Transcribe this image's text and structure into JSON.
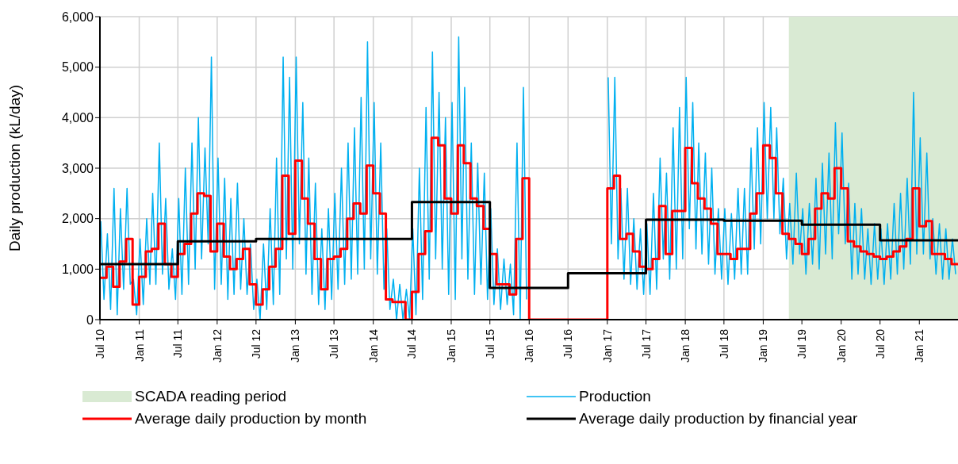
{
  "chart_data": {
    "type": "line",
    "ylabel": "Daily production (kL/day)",
    "ylim": [
      0,
      6000
    ],
    "yticks": [
      0,
      {
        "value": 1000,
        "label": "1,000"
      },
      {
        "value": 2000,
        "label": "2,000"
      },
      {
        "value": 3000,
        "label": "3,000"
      },
      {
        "value": 4000,
        "label": "4,000"
      },
      {
        "value": 5000,
        "label": "5,000"
      },
      {
        "value": 6000,
        "label": "6,000"
      }
    ],
    "xlim": [
      "2010-07-01",
      "2021-07-01"
    ],
    "xticks": [
      {
        "value": "2010-07-01",
        "label": "Jul 10"
      },
      {
        "value": "2011-01-01",
        "label": "Jan 11"
      },
      {
        "value": "2011-07-01",
        "label": "Jul 11"
      },
      {
        "value": "2012-01-01",
        "label": "Jan 12"
      },
      {
        "value": "2012-07-01",
        "label": "Jul 12"
      },
      {
        "value": "2013-01-01",
        "label": "Jan 13"
      },
      {
        "value": "2013-07-01",
        "label": "Jul 13"
      },
      {
        "value": "2014-01-01",
        "label": "Jan 14"
      },
      {
        "value": "2014-07-01",
        "label": "Jul 14"
      },
      {
        "value": "2015-01-01",
        "label": "Jan 15"
      },
      {
        "value": "2015-07-01",
        "label": "Jul 15"
      },
      {
        "value": "2016-01-01",
        "label": "Jan 16"
      },
      {
        "value": "2016-07-01",
        "label": "Jul 16"
      },
      {
        "value": "2017-01-01",
        "label": "Jan 17"
      },
      {
        "value": "2017-07-01",
        "label": "Jul 17"
      },
      {
        "value": "2018-01-01",
        "label": "Jan 18"
      },
      {
        "value": "2018-07-01",
        "label": "Jul 18"
      },
      {
        "value": "2019-01-01",
        "label": "Jan 19"
      },
      {
        "value": "2019-07-01",
        "label": "Jul 19"
      },
      {
        "value": "2020-01-01",
        "label": "Jan 20"
      },
      {
        "value": "2020-07-01",
        "label": "Jul 20"
      },
      {
        "value": "2021-01-01",
        "label": "Jan 21"
      }
    ],
    "grid": true,
    "legend": "bottom",
    "bands": [
      {
        "axis": "x",
        "from": "2019-05-01",
        "to": "2021-07-01",
        "label": "SCADA reading period",
        "color": "#d9ead3"
      }
    ],
    "x": [
      "2010-07",
      "2010-08",
      "2010-09",
      "2010-10",
      "2010-11",
      "2010-12",
      "2011-01",
      "2011-02",
      "2011-03",
      "2011-04",
      "2011-05",
      "2011-06",
      "2011-07",
      "2011-08",
      "2011-09",
      "2011-10",
      "2011-11",
      "2011-12",
      "2012-01",
      "2012-02",
      "2012-03",
      "2012-04",
      "2012-05",
      "2012-06",
      "2012-07",
      "2012-08",
      "2012-09",
      "2012-10",
      "2012-11",
      "2012-12",
      "2013-01",
      "2013-02",
      "2013-03",
      "2013-04",
      "2013-05",
      "2013-06",
      "2013-07",
      "2013-08",
      "2013-09",
      "2013-10",
      "2013-11",
      "2013-12",
      "2014-01",
      "2014-02",
      "2014-03",
      "2014-04",
      "2014-05",
      "2014-06",
      "2014-07",
      "2014-08",
      "2014-09",
      "2014-10",
      "2014-11",
      "2014-12",
      "2015-01",
      "2015-02",
      "2015-03",
      "2015-04",
      "2015-05",
      "2015-06",
      "2015-07",
      "2015-08",
      "2015-09",
      "2015-10",
      "2015-11",
      "2015-12",
      "2016-01",
      "2016-02",
      "2016-03",
      "2016-04",
      "2016-05",
      "2016-06",
      "2016-07",
      "2016-08",
      "2016-09",
      "2016-10",
      "2016-11",
      "2016-12",
      "2017-01",
      "2017-02",
      "2017-03",
      "2017-04",
      "2017-05",
      "2017-06",
      "2017-07",
      "2017-08",
      "2017-09",
      "2017-10",
      "2017-11",
      "2017-12",
      "2018-01",
      "2018-02",
      "2018-03",
      "2018-04",
      "2018-05",
      "2018-06",
      "2018-07",
      "2018-08",
      "2018-09",
      "2018-10",
      "2018-11",
      "2018-12",
      "2019-01",
      "2019-02",
      "2019-03",
      "2019-04",
      "2019-05",
      "2019-06",
      "2019-07",
      "2019-08",
      "2019-09",
      "2019-10",
      "2019-11",
      "2019-12",
      "2020-01",
      "2020-02",
      "2020-03",
      "2020-04",
      "2020-05",
      "2020-06",
      "2020-07",
      "2020-08",
      "2020-09",
      "2020-10",
      "2020-11",
      "2020-12",
      "2021-01",
      "2021-02",
      "2021-03",
      "2021-04",
      "2021-05",
      "2021-06",
      "2021-07"
    ],
    "series": [
      {
        "name": "Production",
        "type": "line",
        "color": "#00b0f0",
        "x": [
          "2010-07-05",
          "2010-07-20",
          "2010-08-05",
          "2010-08-20",
          "2010-09-05",
          "2010-09-20",
          "2010-10-05",
          "2010-10-20",
          "2010-11-05",
          "2010-11-20",
          "2010-12-05",
          "2010-12-20",
          "2011-01-05",
          "2011-01-20",
          "2011-02-05",
          "2011-02-20",
          "2011-03-05",
          "2011-03-20",
          "2011-04-05",
          "2011-04-20",
          "2011-05-05",
          "2011-05-20",
          "2011-06-05",
          "2011-06-20",
          "2011-07-05",
          "2011-07-20",
          "2011-08-05",
          "2011-08-20",
          "2011-09-05",
          "2011-09-20",
          "2011-10-05",
          "2011-10-20",
          "2011-11-05",
          "2011-11-20",
          "2011-12-05",
          "2011-12-20",
          "2012-01-05",
          "2012-01-20",
          "2012-02-05",
          "2012-02-20",
          "2012-03-05",
          "2012-03-20",
          "2012-04-05",
          "2012-04-20",
          "2012-05-05",
          "2012-05-20",
          "2012-06-05",
          "2012-06-20",
          "2012-07-05",
          "2012-07-20",
          "2012-08-05",
          "2012-08-20",
          "2012-09-05",
          "2012-09-20",
          "2012-10-05",
          "2012-10-20",
          "2012-11-05",
          "2012-11-20",
          "2012-12-05",
          "2012-12-20",
          "2013-01-05",
          "2013-01-20",
          "2013-02-05",
          "2013-02-20",
          "2013-03-05",
          "2013-03-20",
          "2013-04-05",
          "2013-04-20",
          "2013-05-05",
          "2013-05-20",
          "2013-06-05",
          "2013-06-20",
          "2013-07-05",
          "2013-07-20",
          "2013-08-05",
          "2013-08-20",
          "2013-09-05",
          "2013-09-20",
          "2013-10-05",
          "2013-10-20",
          "2013-11-05",
          "2013-11-20",
          "2013-12-05",
          "2013-12-20",
          "2014-01-05",
          "2014-01-20",
          "2014-02-05",
          "2014-02-20",
          "2014-03-05",
          "2014-03-20",
          "2014-04-05",
          "2014-04-20",
          "2014-05-05",
          "2014-05-20",
          "2014-06-05",
          "2014-06-20",
          "2014-07-05",
          "2014-07-20",
          "2014-08-05",
          "2014-08-20",
          "2014-09-05",
          "2014-09-20",
          "2014-10-05",
          "2014-10-20",
          "2014-11-05",
          "2014-11-20",
          "2014-12-05",
          "2014-12-20",
          "2015-01-05",
          "2015-01-20",
          "2015-02-05",
          "2015-02-20",
          "2015-03-05",
          "2015-03-20",
          "2015-04-05",
          "2015-04-20",
          "2015-05-05",
          "2015-05-20",
          "2015-06-05",
          "2015-06-20",
          "2015-07-05",
          "2015-07-20",
          "2015-08-05",
          "2015-08-20",
          "2015-09-05",
          "2015-09-20",
          "2015-10-05",
          "2015-10-20",
          "2015-11-05",
          "2015-11-20",
          "2015-12-05",
          "2015-12-20",
          "2016-07-01",
          "2017-01-05",
          "2017-01-20",
          "2017-02-05",
          "2017-02-20",
          "2017-03-05",
          "2017-03-20",
          "2017-04-05",
          "2017-04-20",
          "2017-05-05",
          "2017-05-20",
          "2017-06-05",
          "2017-06-20",
          "2017-07-05",
          "2017-07-20",
          "2017-08-05",
          "2017-08-20",
          "2017-09-05",
          "2017-09-20",
          "2017-10-05",
          "2017-10-20",
          "2017-11-05",
          "2017-11-20",
          "2017-12-05",
          "2017-12-20",
          "2018-01-05",
          "2018-01-20",
          "2018-02-05",
          "2018-02-20",
          "2018-03-05",
          "2018-03-20",
          "2018-04-05",
          "2018-04-20",
          "2018-05-05",
          "2018-05-20",
          "2018-06-05",
          "2018-06-20",
          "2018-07-05",
          "2018-07-20",
          "2018-08-05",
          "2018-08-20",
          "2018-09-05",
          "2018-09-20",
          "2018-10-05",
          "2018-10-20",
          "2018-11-05",
          "2018-11-20",
          "2018-12-05",
          "2018-12-20",
          "2019-01-05",
          "2019-01-20",
          "2019-02-05",
          "2019-02-20",
          "2019-03-05",
          "2019-03-20",
          "2019-04-05",
          "2019-04-20",
          "2019-05-05",
          "2019-05-20",
          "2019-06-05",
          "2019-06-20",
          "2019-07-05",
          "2019-07-20",
          "2019-08-05",
          "2019-08-20",
          "2019-09-05",
          "2019-09-20",
          "2019-10-05",
          "2019-10-20",
          "2019-11-05",
          "2019-11-20",
          "2019-12-05",
          "2019-12-20",
          "2020-01-05",
          "2020-01-20",
          "2020-02-05",
          "2020-02-20",
          "2020-03-05",
          "2020-03-20",
          "2020-04-05",
          "2020-04-20",
          "2020-05-05",
          "2020-05-20",
          "2020-06-05",
          "2020-06-20",
          "2020-07-05",
          "2020-07-20",
          "2020-08-05",
          "2020-08-20",
          "2020-09-05",
          "2020-09-20",
          "2020-10-05",
          "2020-10-20",
          "2020-11-05",
          "2020-11-20",
          "2020-12-05",
          "2020-12-20",
          "2021-01-05",
          "2021-01-20",
          "2021-02-05",
          "2021-02-20",
          "2021-03-05",
          "2021-03-20",
          "2021-04-05",
          "2021-04-20",
          "2021-05-05",
          "2021-05-20",
          "2021-06-05",
          "2021-06-20"
        ],
        "values": [
          1950,
          400,
          1700,
          200,
          2600,
          100,
          2200,
          600,
          2600,
          700,
          800,
          100,
          1600,
          300,
          2000,
          700,
          2500,
          700,
          3500,
          900,
          2400,
          600,
          1400,
          400,
          2400,
          500,
          3000,
          700,
          3500,
          1000,
          4000,
          1200,
          3400,
          1500,
          5200,
          600,
          3200,
          700,
          2800,
          400,
          2400,
          500,
          2700,
          600,
          2000,
          500,
          1500,
          200,
          800,
          0,
          1500,
          200,
          2200,
          300,
          3200,
          500,
          5200,
          1200,
          4800,
          1000,
          5200,
          1500,
          4300,
          900,
          3200,
          500,
          2700,
          300,
          1800,
          200,
          2200,
          400,
          2500,
          600,
          3000,
          700,
          3500,
          800,
          3800,
          900,
          4400,
          1000,
          5500,
          1200,
          4300,
          900,
          3500,
          600,
          1800,
          200,
          800,
          0,
          700,
          0,
          600,
          0,
          1800,
          100,
          3000,
          400,
          4200,
          800,
          5300,
          1200,
          4500,
          1000,
          4000,
          500,
          4300,
          400,
          5600,
          1200,
          4600,
          800,
          3500,
          500,
          3100,
          700,
          2900,
          400,
          2200,
          300,
          1400,
          200,
          1200,
          300,
          1100,
          100,
          3500,
          0,
          4600,
          400,
          null,
          4800,
          1500,
          4800,
          1200,
          2600,
          800,
          2600,
          700,
          2000,
          600,
          1800,
          500,
          1900,
          500,
          2500,
          600,
          3200,
          1200,
          2900,
          800,
          3800,
          1000,
          4200,
          1200,
          4800,
          1800,
          4300,
          1400,
          3500,
          1300,
          3300,
          1100,
          3000,
          900,
          2200,
          800,
          2200,
          700,
          2100,
          800,
          2600,
          900,
          2600,
          900,
          3400,
          1400,
          3800,
          1500,
          4300,
          2000,
          4200,
          2000,
          3800,
          1700,
          2800,
          1200,
          2300,
          1100,
          2900,
          1300,
          2200,
          900,
          2300,
          1100,
          2800,
          1000,
          3100,
          1300,
          3300,
          1200,
          3900,
          1700,
          3700,
          1500,
          2700,
          800,
          2300,
          900,
          2200,
          800,
          1800,
          700,
          1900,
          800,
          1800,
          700,
          1900,
          800,
          2300,
          900,
          2500,
          1000,
          2800,
          1100,
          4500,
          1300,
          3600,
          1300,
          3300,
          1200,
          2000,
          900,
          1900,
          800,
          1800,
          800,
          1600,
          900
        ]
      },
      {
        "name": "Average daily production by month",
        "type": "step",
        "color": "#ff0000",
        "values": [
          830,
          1050,
          650,
          1150,
          1600,
          300,
          850,
          1350,
          1400,
          1900,
          1100,
          850,
          1300,
          1500,
          2100,
          2500,
          2450,
          1350,
          1900,
          1250,
          1000,
          1200,
          1400,
          700,
          300,
          600,
          1050,
          1400,
          2850,
          1700,
          3150,
          2400,
          1900,
          1200,
          600,
          1200,
          1250,
          1400,
          2000,
          2300,
          2100,
          3050,
          2500,
          2100,
          400,
          350,
          350,
          0,
          550,
          1300,
          1750,
          3600,
          3450,
          2400,
          2100,
          3450,
          3100,
          2400,
          2250,
          1800,
          1300,
          700,
          700,
          500,
          1600,
          2800,
          0,
          0,
          0,
          0,
          0,
          0,
          0,
          0,
          0,
          0,
          0,
          0,
          2600,
          2850,
          1600,
          1700,
          1350,
          1050,
          1000,
          1200,
          2250,
          1300,
          2150,
          2150,
          3400,
          2700,
          2400,
          2200,
          1900,
          1300,
          1300,
          1200,
          1400,
          1400,
          2100,
          2500,
          3450,
          3200,
          2500,
          1700,
          1600,
          1500,
          1300,
          1600,
          2200,
          2500,
          2400,
          3000,
          2600,
          1550,
          1450,
          1350,
          1300,
          1250,
          1200,
          1250,
          1350,
          1450,
          1600,
          2600,
          1850,
          1950,
          1300,
          1300,
          1200,
          1100,
          1100
        ]
      },
      {
        "name": "Average daily production by financial year",
        "type": "step",
        "color": "#000000",
        "x": [
          "2010-07",
          "2011-07",
          "2012-07",
          "2013-07",
          "2014-07",
          "2015-07",
          "2016-07",
          "2017-07",
          "2018-07",
          "2019-07",
          "2020-07",
          "2021-07"
        ],
        "values": [
          1100,
          1550,
          1600,
          1600,
          2330,
          630,
          920,
          1980,
          1960,
          1880,
          1570,
          1570
        ]
      }
    ]
  }
}
